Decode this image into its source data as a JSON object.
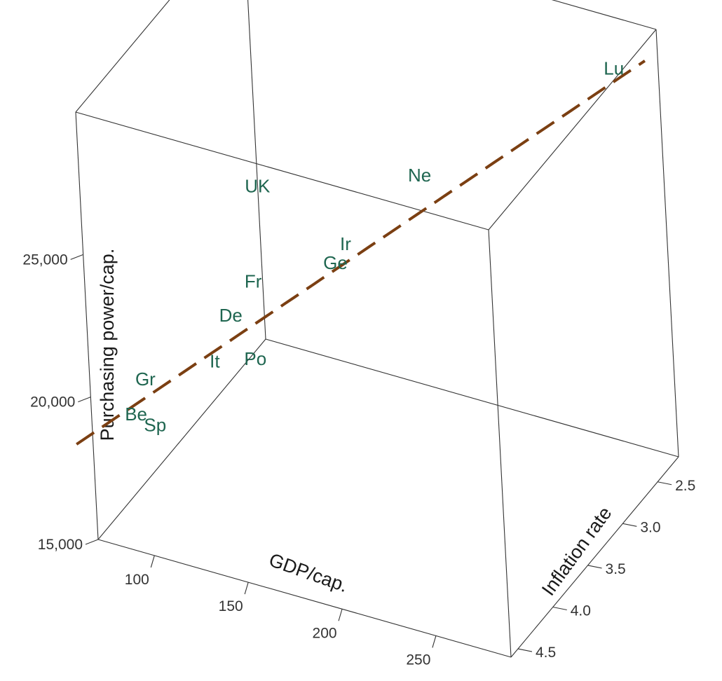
{
  "chart_data": {
    "type": "scatter",
    "projection": "3d",
    "x": {
      "label": "GDP/cap.",
      "ticks": [
        100,
        150,
        200,
        250
      ],
      "tick_labels": [
        "100",
        "150",
        "200",
        "250"
      ]
    },
    "y": {
      "label": "Inflation rate",
      "ticks": [
        2.5,
        3.0,
        3.5,
        4.0,
        4.5
      ],
      "tick_labels": [
        "2.5",
        "3.0",
        "3.5",
        "4.0",
        "4.5"
      ]
    },
    "z": {
      "label": "Purchasing power/cap.",
      "ticks": [
        15000,
        20000,
        25000
      ],
      "tick_labels": [
        "15,000",
        "20,000",
        "25,000"
      ]
    },
    "points": [
      {
        "label": "Lu",
        "gdp": 270,
        "inflation": 2.3,
        "power": 28500
      },
      {
        "label": "Ne",
        "gdp": 190,
        "inflation": 3.0,
        "power": 25300
      },
      {
        "label": "Ir",
        "gdp": 160,
        "inflation": 3.3,
        "power": 23200
      },
      {
        "label": "Ge",
        "gdp": 158,
        "inflation": 3.4,
        "power": 22800
      },
      {
        "label": "UK",
        "gdp": 110,
        "inflation": 3.2,
        "power": 24000
      },
      {
        "label": "Fr",
        "gdp": 125,
        "inflation": 3.7,
        "power": 22400
      },
      {
        "label": "De",
        "gdp": 120,
        "inflation": 3.9,
        "power": 21700
      },
      {
        "label": "It",
        "gdp": 110,
        "inflation": 3.9,
        "power": 19900
      },
      {
        "label": "Po",
        "gdp": 120,
        "inflation": 3.6,
        "power": 19300
      },
      {
        "label": "Gr",
        "gdp": 80,
        "inflation": 4.1,
        "power": 19300
      },
      {
        "label": "Be",
        "gdp": 82,
        "inflation": 4.3,
        "power": 18700
      },
      {
        "label": "Sp",
        "gdp": 92,
        "inflation": 4.3,
        "power": 18500
      }
    ],
    "fit_line": {
      "style": "dashed",
      "color": "#7b3f12"
    },
    "label_color": "#1f6650",
    "box_color": "#333333",
    "grid": false,
    "legend": "none"
  }
}
